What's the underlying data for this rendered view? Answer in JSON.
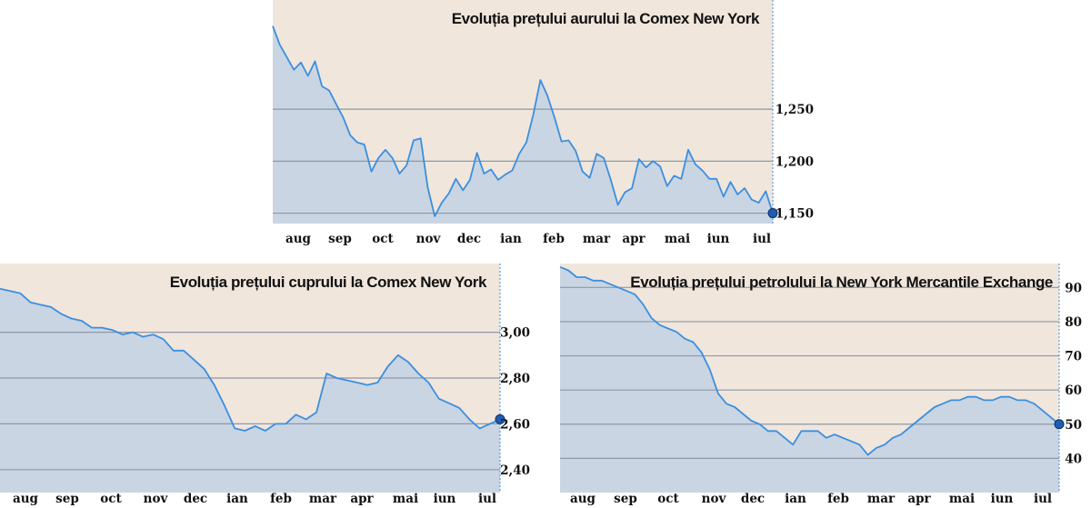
{
  "colors": {
    "plot_background": "#f0e6dc",
    "area_fill": "#c9d5e2",
    "line": "#3a8fe0",
    "gridline": "#8f97a7",
    "endpoint": "#1f5db3"
  },
  "chart_data": [
    {
      "id": "gold",
      "type": "area",
      "title": "Evoluția prețului aurului la Comex New York",
      "x_labels": [
        "aug",
        "sep",
        "oct",
        "nov",
        "dec",
        "ian",
        "feb",
        "mar",
        "apr",
        "mai",
        "iun",
        "iul"
      ],
      "y_ticks": [
        1150,
        1200,
        1250
      ],
      "y_tick_labels": [
        "1,150",
        "1,200",
        "1,250"
      ],
      "ylim": [
        1140,
        1355
      ],
      "y_axis_side": "right",
      "grid": true,
      "series": [
        {
          "values": [
            1330,
            1312,
            1300,
            1288,
            1295,
            1282,
            1296,
            1272,
            1268,
            1255,
            1242,
            1225,
            1218,
            1216,
            1190,
            1203,
            1211,
            1203,
            1188,
            1196,
            1220,
            1222,
            1175,
            1147,
            1160,
            1169,
            1183,
            1172,
            1182,
            1208,
            1188,
            1192,
            1182,
            1187,
            1191,
            1207,
            1218,
            1245,
            1278,
            1263,
            1242,
            1219,
            1220,
            1210,
            1190,
            1184,
            1207,
            1203,
            1182,
            1158,
            1170,
            1174,
            1202,
            1194,
            1200,
            1195,
            1176,
            1186,
            1183,
            1211,
            1197,
            1191,
            1183,
            1183,
            1166,
            1180,
            1168,
            1174,
            1163,
            1160,
            1171,
            1150
          ]
        }
      ]
    },
    {
      "id": "copper",
      "type": "area",
      "title": "Evoluția prețului cuprului la Comex New York",
      "x_labels": [
        "aug",
        "sep",
        "oct",
        "nov",
        "dec",
        "ian",
        "feb",
        "mar",
        "apr",
        "mai",
        "iun",
        "iul"
      ],
      "y_ticks": [
        2.4,
        2.6,
        2.8,
        3.0
      ],
      "y_tick_labels": [
        "2,40",
        "2,60",
        "2,80",
        "3,00"
      ],
      "ylim": [
        2.3,
        3.3
      ],
      "y_axis_side": "right",
      "grid": true,
      "series": [
        {
          "values": [
            3.19,
            3.18,
            3.17,
            3.13,
            3.12,
            3.11,
            3.08,
            3.06,
            3.05,
            3.02,
            3.02,
            3.01,
            2.99,
            3.0,
            2.98,
            2.99,
            2.97,
            2.92,
            2.92,
            2.88,
            2.84,
            2.77,
            2.68,
            2.58,
            2.57,
            2.59,
            2.57,
            2.6,
            2.6,
            2.64,
            2.62,
            2.65,
            2.82,
            2.8,
            2.79,
            2.78,
            2.77,
            2.78,
            2.85,
            2.9,
            2.87,
            2.82,
            2.78,
            2.71,
            2.69,
            2.67,
            2.62,
            2.58,
            2.6,
            2.62
          ]
        }
      ]
    },
    {
      "id": "oil",
      "type": "area",
      "title": "Evoluția prețului petrolului la New York Mercantile Exchange",
      "x_labels": [
        "aug",
        "sep",
        "oct",
        "nov",
        "dec",
        "ian",
        "feb",
        "mar",
        "apr",
        "mai",
        "iun",
        "iul"
      ],
      "y_ticks": [
        40,
        50,
        60,
        70,
        80,
        90
      ],
      "y_tick_labels": [
        "40",
        "50",
        "60",
        "70",
        "80",
        "90"
      ],
      "ylim": [
        30,
        97
      ],
      "y_axis_side": "right",
      "grid": true,
      "series": [
        {
          "values": [
            96,
            95,
            93,
            93,
            92,
            92,
            91,
            90,
            89,
            88,
            85,
            81,
            79,
            78,
            77,
            75,
            74,
            71,
            66,
            59,
            56,
            55,
            53,
            51,
            50,
            48,
            48,
            46,
            44,
            48,
            48,
            48,
            46,
            47,
            46,
            45,
            44,
            41,
            43,
            44,
            46,
            47,
            49,
            51,
            53,
            55,
            56,
            57,
            57,
            58,
            58,
            57,
            57,
            58,
            58,
            57,
            57,
            56,
            54,
            52,
            50
          ]
        }
      ]
    }
  ]
}
